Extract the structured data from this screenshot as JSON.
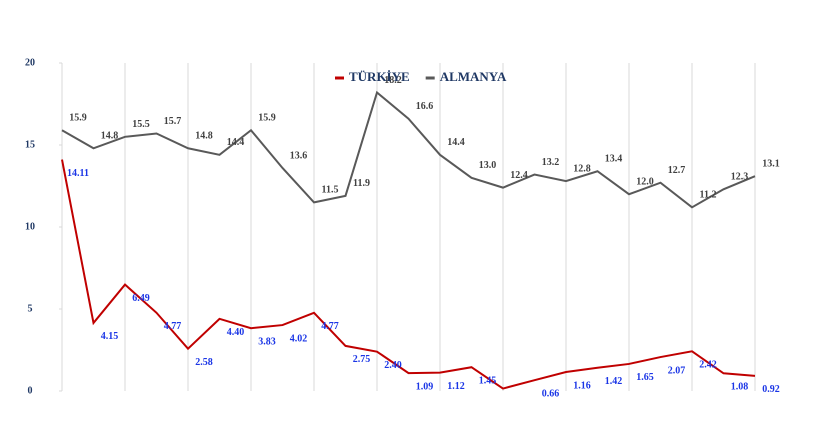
{
  "chart_data": {
    "type": "line",
    "categories": [
      null,
      null,
      null,
      null,
      null,
      null,
      null,
      null,
      null,
      null,
      null,
      null,
      null,
      null,
      null,
      null,
      null,
      null,
      null,
      null,
      null,
      null,
      null
    ],
    "series": [
      {
        "name": "TÜRKİYE",
        "color": "#c00000",
        "label_color": "#1a35e6",
        "values": [
          14.11,
          4.15,
          6.49,
          4.77,
          2.58,
          4.4,
          3.83,
          4.02,
          4.77,
          2.75,
          2.4,
          1.09,
          1.12,
          1.45,
          0.15,
          0.66,
          1.16,
          1.42,
          1.65,
          2.07,
          2.42,
          1.08,
          0.92
        ],
        "value_labels": [
          "14.11",
          "4.15",
          "6.49",
          "4.77",
          "2.58",
          "4.40",
          "3.83",
          "4.02",
          "4.77",
          "2.75",
          "2.40",
          "1.09",
          "1.12",
          "1.45",
          null,
          "0.66",
          "1.16",
          "1.42",
          "1.65",
          "2.07",
          "2.42",
          "1.08",
          "0.92"
        ]
      },
      {
        "name": "ALMANYA",
        "color": "#595959",
        "label_color": "#404040",
        "values": [
          15.9,
          14.8,
          15.5,
          15.7,
          14.8,
          14.4,
          15.9,
          13.6,
          11.5,
          11.9,
          18.2,
          16.6,
          14.4,
          13.0,
          12.4,
          13.2,
          12.8,
          13.4,
          12.0,
          12.7,
          11.2,
          12.3,
          13.1
        ],
        "value_labels": [
          "15.9",
          "14.8",
          "15.5",
          "15.7",
          "14.8",
          "14.4",
          "15.9",
          "13.6",
          "11.5",
          "11.9",
          "18.2",
          "16.6",
          "14.4",
          "13.0",
          "12.4",
          "13.2",
          "12.8",
          "13.4",
          "12.0",
          "12.7",
          "11.2",
          "12.3",
          "13.1"
        ]
      }
    ],
    "ylim": [
      0,
      20
    ],
    "yticks": [
      0,
      5,
      10,
      15,
      20
    ],
    "legend": "top"
  }
}
